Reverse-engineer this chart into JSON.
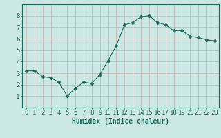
{
  "x": [
    0,
    1,
    2,
    3,
    4,
    5,
    6,
    7,
    8,
    9,
    10,
    11,
    12,
    13,
    14,
    15,
    16,
    17,
    18,
    19,
    20,
    21,
    22,
    23
  ],
  "y": [
    3.2,
    3.2,
    2.7,
    2.6,
    2.2,
    1.0,
    1.7,
    2.2,
    2.1,
    2.9,
    4.1,
    5.4,
    7.2,
    7.4,
    7.9,
    8.0,
    7.4,
    7.2,
    6.7,
    6.7,
    6.2,
    6.1,
    5.9,
    5.8
  ],
  "line_color": "#1a6b5a",
  "marker": "D",
  "marker_size": 2.5,
  "bg_color": "#cce8e5",
  "grid_color": "#c8b8b8",
  "axis_color": "#1a6b5a",
  "xlabel": "Humidex (Indice chaleur)",
  "ylim": [
    0,
    9
  ],
  "xlim": [
    -0.5,
    23.5
  ],
  "yticks": [
    1,
    2,
    3,
    4,
    5,
    6,
    7,
    8
  ],
  "xticks": [
    0,
    1,
    2,
    3,
    4,
    5,
    6,
    7,
    8,
    9,
    10,
    11,
    12,
    13,
    14,
    15,
    16,
    17,
    18,
    19,
    20,
    21,
    22,
    23
  ],
  "xlabel_fontsize": 7,
  "tick_fontsize": 6.5
}
